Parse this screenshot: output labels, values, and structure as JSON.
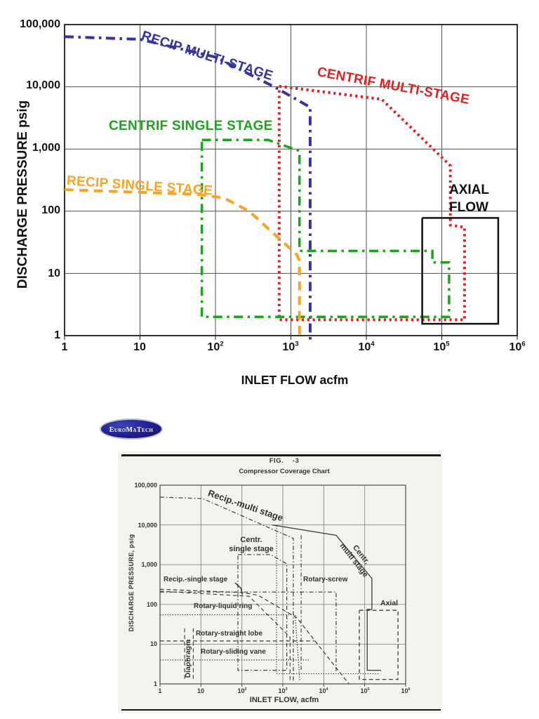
{
  "logo": {
    "text": "EuroMaTech"
  },
  "chart_data": [
    {
      "type": "line",
      "scale": "log-log",
      "xlabel": "INLET FLOW acfm",
      "ylabel": "DISCHARGE PRESSURE psig",
      "xlim": [
        1,
        1000000
      ],
      "ylim": [
        1,
        100000
      ],
      "grid": true,
      "y_ticks": [
        "100,000",
        "10,000",
        "1,000",
        "100",
        "10",
        "1"
      ],
      "x_ticks": [
        {
          "b": "1",
          "s": ""
        },
        {
          "b": "10",
          "s": ""
        },
        {
          "b": "10",
          "s": "2"
        },
        {
          "b": "10",
          "s": "3"
        },
        {
          "b": "10",
          "s": "4"
        },
        {
          "b": "10",
          "s": "5"
        },
        {
          "b": "10",
          "s": "6"
        }
      ],
      "annotations": [
        {
          "text": "AXIAL"
        },
        {
          "text": "FLOW"
        }
      ],
      "series": [
        {
          "name": "recip-multi-stage",
          "label": "RECIP MULTI-STAGE",
          "color": "#3434A4",
          "dash": "dashdot",
          "width": 4,
          "points": [
            [
              1,
              64000
            ],
            [
              10,
              58000
            ],
            [
              100,
              30000
            ],
            [
              600,
              10000
            ],
            [
              1800,
              4700
            ],
            [
              1800,
              0.85
            ]
          ]
        },
        {
          "name": "centrif-multi-stage",
          "label": "CENTRIF MULTI-STAGE",
          "color": "#E32020",
          "dash": "dot",
          "width": 4,
          "points": [
            [
              700,
              10200
            ],
            [
              16000,
              6300
            ],
            [
              130000,
              540
            ],
            [
              130000,
              60
            ],
            [
              200000,
              55
            ],
            [
              200000,
              1.8
            ],
            [
              700,
              1.8
            ],
            [
              700,
              10200
            ]
          ]
        },
        {
          "name": "centrif-single-stage",
          "label": "CENTRIF SINGLE STAGE",
          "color": "#1CA41C",
          "dash": "dashdot",
          "width": 3.5,
          "points": [
            [
              66,
              1400
            ],
            [
              500,
              1400
            ],
            [
              1300,
              930
            ],
            [
              1300,
              23
            ],
            [
              75000,
              23
            ],
            [
              75000,
              15
            ],
            [
              125000,
              15
            ],
            [
              125000,
              2
            ],
            [
              66,
              2
            ],
            [
              66,
              1400
            ]
          ]
        },
        {
          "name": "recip-single-stage",
          "label": "RECIP SINGLE STAGE",
          "color": "#FCA321",
          "dash": "dash",
          "width": 4,
          "points": [
            [
              1,
              222
            ],
            [
              60,
              186
            ],
            [
              130,
              163
            ],
            [
              280,
              100
            ],
            [
              1200,
              20
            ],
            [
              1300,
              16
            ],
            [
              1300,
              0.85
            ]
          ]
        },
        {
          "name": "axial-flow",
          "label": "AXIAL FLOW",
          "color": "#121212",
          "dash": "solid",
          "width": 2.5,
          "points": [
            [
              55000,
              78
            ],
            [
              560000,
              78
            ],
            [
              560000,
              1.55
            ],
            [
              55000,
              1.55
            ],
            [
              55000,
              78
            ]
          ]
        }
      ]
    },
    {
      "type": "line",
      "scale": "log-log",
      "fig": "FIG.    -3",
      "title": "Compressor Coverage Chart",
      "xlabel": "INLET FLOW, acfm",
      "ylabel": "DISCHARGE PRESSURE, psig",
      "xlim": [
        1,
        1000000
      ],
      "ylim": [
        1,
        100000
      ],
      "grid": true,
      "y_ticks": [
        "100,000",
        "10,000",
        "1,000",
        "100",
        "10",
        "1"
      ],
      "x_ticks": [
        {
          "b": "1",
          "s": ""
        },
        {
          "b": "10",
          "s": ""
        },
        {
          "b": "10",
          "s": "2"
        },
        {
          "b": "10",
          "s": "3"
        },
        {
          "b": "10",
          "s": "4"
        },
        {
          "b": "10",
          "s": "5"
        },
        {
          "b": "10",
          "s": "6"
        }
      ],
      "series": [
        {
          "name": "recip-multi-stage",
          "label": "Recip.-multi stage",
          "color": "#3a3a3a",
          "dash": "dashdot",
          "width": 1.2,
          "points": [
            [
              1,
              50000
            ],
            [
              11,
              46000
            ],
            [
              1800,
              4600
            ],
            [
              1800,
              1.1
            ]
          ]
        },
        {
          "name": "centr-single-stage",
          "label": "Centr. single stage",
          "l1": "Centr.",
          "l2": "single stage",
          "color": "#3a3a3a",
          "dash": "dashdot",
          "width": 1.2,
          "points": [
            [
              80,
              1800
            ],
            [
              500,
              1800
            ],
            [
              1250,
              1050
            ],
            [
              1250,
              2.2
            ],
            [
              80,
              2.2
            ],
            [
              80,
              1800
            ]
          ]
        },
        {
          "name": "centr-multi-stage",
          "label": "Centr. multi stage",
          "l1": "Centr.",
          "l2": "multi stage",
          "color": "#3a3a3a",
          "dash": "solid",
          "width": 1.3,
          "points": [
            [
              550,
              10000
            ],
            [
              20000,
              5500
            ],
            [
              150000,
              450
            ],
            [
              150000,
              75
            ],
            [
              115000,
              75
            ],
            [
              115000,
              2.2
            ],
            [
              250000,
              2.2
            ]
          ]
        },
        {
          "name": "centr-multi-bounds",
          "color": "#3a3a3a",
          "dash": "dot",
          "width": 1.1,
          "points": [
            [
              700,
              9500
            ],
            [
              700,
              1.8
            ],
            [
              230000,
              1.8
            ]
          ]
        },
        {
          "name": "recip-single-stage",
          "label": "Recip.-single stage",
          "color": "#3a3a3a",
          "dash": "dash",
          "width": 1.2,
          "points": [
            [
              1,
              240
            ],
            [
              100,
              200
            ],
            [
              250,
              170
            ],
            [
              2200,
              46
            ],
            [
              41000,
              1
            ]
          ]
        },
        {
          "name": "recip-single-stage-b",
          "color": "#3a3a3a",
          "dash": "dash",
          "width": 1.1,
          "points": [
            [
              1,
              215
            ],
            [
              150,
              160
            ],
            [
              1500,
              15
            ],
            [
              1500,
              1.1
            ]
          ]
        },
        {
          "name": "rotary-screw",
          "label": "Rotary-screw",
          "color": "#3a3a3a",
          "dash": "dashdot",
          "width": 1.2,
          "points": [
            [
              1,
              205
            ],
            [
              20000,
              205
            ],
            [
              20000,
              2.1
            ]
          ]
        },
        {
          "name": "rotary-liquid-ring",
          "label": "Rotary-liquid ring",
          "color": "#3a3a3a",
          "dash": "dot",
          "width": 1.2,
          "points": [
            [
              1,
              55
            ],
            [
              2000,
              55
            ],
            [
              2600,
              1.2
            ]
          ]
        },
        {
          "name": "rotary-straight-lobe",
          "label": "Rotary-straight lobe",
          "color": "#3a3a3a",
          "dash": "dash",
          "width": 1.2,
          "points": [
            [
              1,
              12
            ],
            [
              6000,
              12
            ]
          ]
        },
        {
          "name": "rotary-sliding-vane",
          "label": "Rotary-sliding vane",
          "color": "#3a3a3a",
          "dash": "dot",
          "width": 1.2,
          "points": [
            [
              1,
              4
            ],
            [
              4500,
              4
            ]
          ]
        },
        {
          "name": "diaphragm",
          "label": "Diaphragm",
          "color": "#3a3a3a",
          "dash": "dash",
          "width": 1.1,
          "points": [
            [
              4,
              25
            ],
            [
              4,
              1.2
            ]
          ]
        },
        {
          "name": "diaphragm-b",
          "color": "#3a3a3a",
          "dash": "dash",
          "width": 1.1,
          "points": [
            [
              6.5,
              25
            ],
            [
              6.5,
              1.2
            ]
          ]
        },
        {
          "name": "axial",
          "label": "Axial",
          "color": "#3a3a3a",
          "dash": "dash",
          "width": 1.3,
          "points": [
            [
              74000,
              71
            ],
            [
              650000,
              71
            ],
            [
              650000,
              1.3
            ],
            [
              74000,
              1.3
            ],
            [
              74000,
              71
            ]
          ]
        },
        {
          "name": "vertical-extra",
          "color": "#3a3a3a",
          "dash": "dashdot",
          "width": 1.1,
          "points": [
            [
              2800,
              5500
            ],
            [
              2800,
              2
            ]
          ]
        },
        {
          "name": "label-arrow",
          "color": "#2f2f2f",
          "dash": "solid",
          "width": 1.4,
          "points": [
            [
              68,
              350
            ],
            [
              95,
              255
            ],
            [
              102,
              175
            ]
          ]
        }
      ]
    }
  ]
}
